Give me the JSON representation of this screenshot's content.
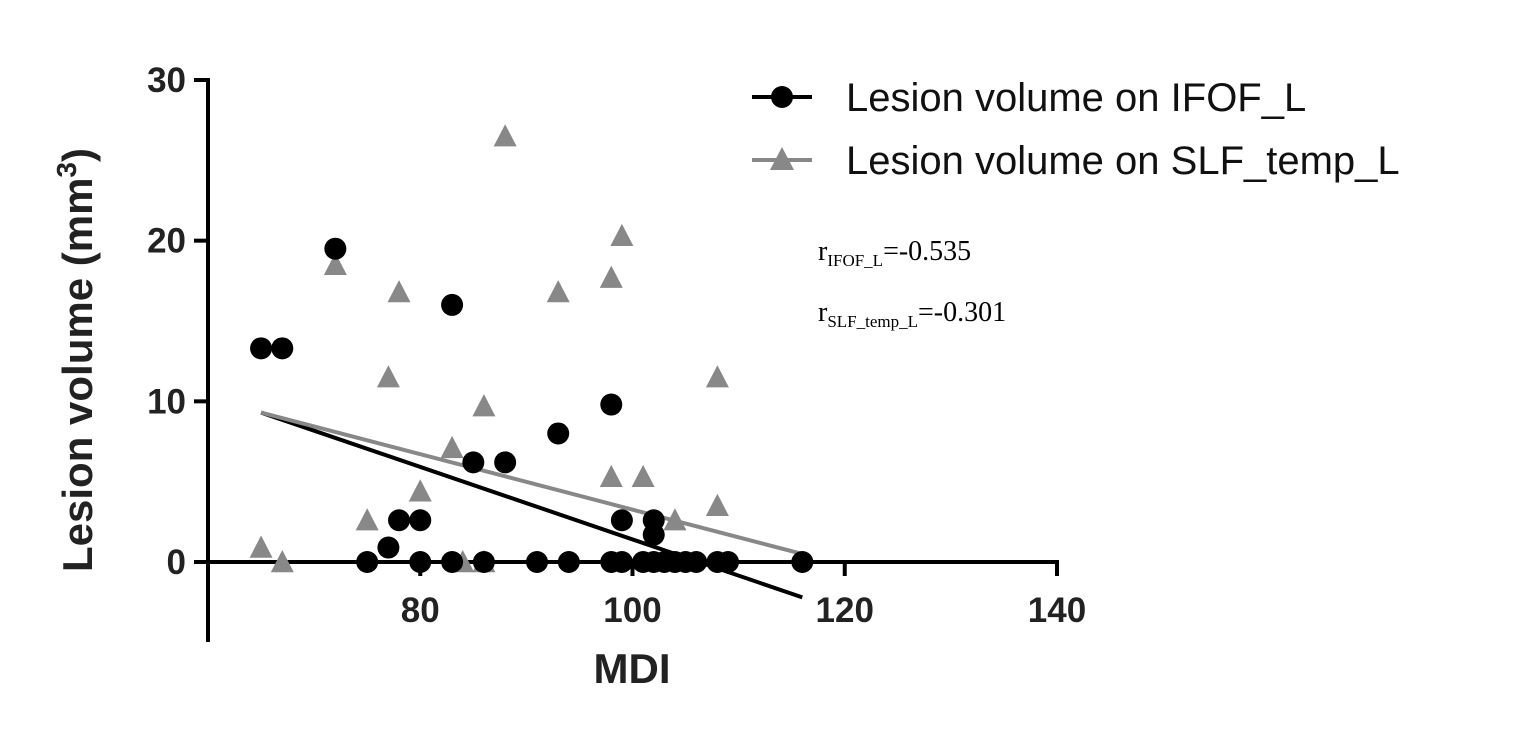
{
  "chart_data": {
    "type": "scatter",
    "xlabel": "MDI",
    "ylabel": "Lesion volume (mm",
    "ylabel_sup": "3",
    "ylabel_close": ")",
    "xlim": [
      60,
      140
    ],
    "ylim": [
      -5,
      30
    ],
    "xticks": [
      80,
      100,
      120,
      140
    ],
    "yticks": [
      0,
      10,
      20,
      30
    ],
    "series": [
      {
        "name": "Lesion volume on IFOF_L",
        "marker": "circle",
        "color": "#000000",
        "points": [
          [
            65,
            13.3
          ],
          [
            67,
            13.3
          ],
          [
            72,
            19.5
          ],
          [
            75,
            0
          ],
          [
            77,
            0.9
          ],
          [
            78,
            2.6
          ],
          [
            80,
            2.6
          ],
          [
            80,
            0
          ],
          [
            83,
            16
          ],
          [
            83,
            0
          ],
          [
            85,
            6.2
          ],
          [
            86,
            0
          ],
          [
            88,
            6.2
          ],
          [
            91,
            0
          ],
          [
            93,
            8
          ],
          [
            94,
            0
          ],
          [
            98,
            9.8
          ],
          [
            98,
            0
          ],
          [
            99,
            2.6
          ],
          [
            99,
            0
          ],
          [
            101,
            0
          ],
          [
            102,
            2.6
          ],
          [
            102,
            1.7
          ],
          [
            102,
            0
          ],
          [
            103,
            0
          ],
          [
            104,
            0
          ],
          [
            105,
            0
          ],
          [
            106,
            0
          ],
          [
            108,
            0
          ],
          [
            109,
            0
          ],
          [
            116,
            0
          ]
        ],
        "fit": {
          "x": [
            65,
            116
          ],
          "y": [
            9.3,
            -2.2
          ]
        }
      },
      {
        "name": "Lesion volume on SLF_temp_L",
        "marker": "triangle",
        "color": "#888888",
        "points": [
          [
            65,
            0.9
          ],
          [
            67,
            0
          ],
          [
            72,
            18.5
          ],
          [
            75,
            2.6
          ],
          [
            77,
            11.5
          ],
          [
            78,
            16.8
          ],
          [
            80,
            4.4
          ],
          [
            83,
            7.1
          ],
          [
            84,
            0
          ],
          [
            86,
            9.7
          ],
          [
            86,
            0
          ],
          [
            88,
            26.5
          ],
          [
            93,
            16.8
          ],
          [
            98,
            17.7
          ],
          [
            98,
            5.3
          ],
          [
            99,
            20.3
          ],
          [
            101,
            5.3
          ],
          [
            104,
            2.6
          ],
          [
            108,
            11.5
          ],
          [
            108,
            3.5
          ]
        ],
        "fit": {
          "x": [
            65,
            116
          ],
          "y": [
            9.3,
            0.5
          ]
        }
      }
    ],
    "annotations": [
      {
        "r": "r",
        "sub": "IFOF_L",
        "value": "=-0.535"
      },
      {
        "r": "r",
        "sub": "SLF_temp_L",
        "value": "=-0.301"
      }
    ]
  }
}
